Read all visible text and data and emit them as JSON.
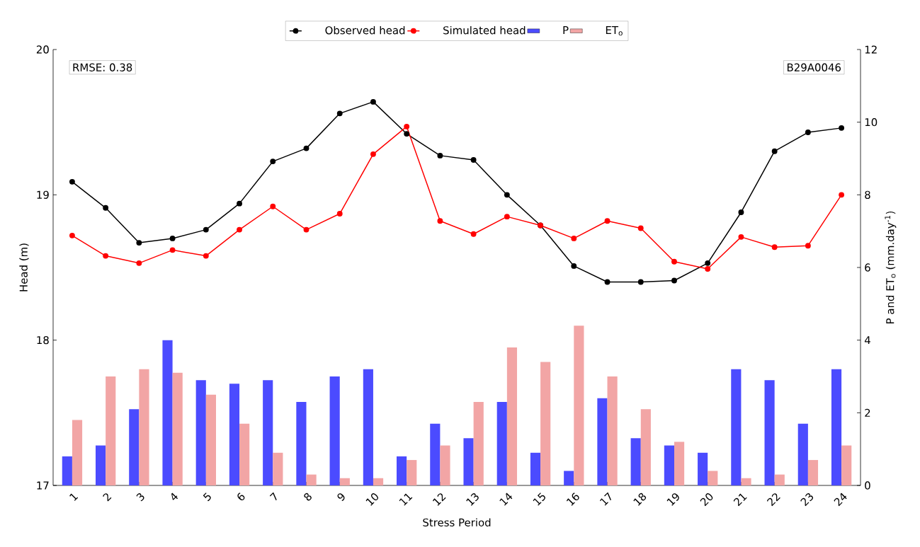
{
  "chart_data": {
    "type": "line",
    "xlabel": "Stress Period",
    "ylabel": "Head (m)",
    "y2label": "P and ET$_{o}$ (mm.day$^{-1}$)",
    "categories": [
      "1",
      "2",
      "3",
      "4",
      "5",
      "6",
      "7",
      "8",
      "9",
      "10",
      "11",
      "12",
      "13",
      "14",
      "15",
      "16",
      "17",
      "18",
      "19",
      "20",
      "21",
      "22",
      "23",
      "24"
    ],
    "series": [
      {
        "name": "Observed head",
        "color": "#000000",
        "values": [
          19.09,
          18.91,
          18.67,
          18.7,
          18.76,
          18.94,
          19.23,
          19.32,
          19.56,
          19.64,
          19.42,
          19.27,
          19.24,
          19.0,
          18.79,
          18.51,
          18.4,
          18.4,
          18.41,
          18.53,
          18.88,
          19.3,
          19.43,
          19.46
        ]
      },
      {
        "name": "Simulated head",
        "color": "#ff0000",
        "values": [
          18.72,
          18.58,
          18.53,
          18.62,
          18.58,
          18.76,
          18.92,
          18.76,
          18.87,
          19.28,
          19.47,
          18.82,
          18.73,
          18.85,
          18.79,
          18.7,
          18.82,
          18.77,
          18.54,
          18.49,
          18.71,
          18.64,
          18.65,
          19.0
        ]
      },
      {
        "name": "P",
        "type": "bar",
        "axis": "y2",
        "color": "#4b4bff",
        "values": [
          0.8,
          1.1,
          2.1,
          4.0,
          2.9,
          2.8,
          2.9,
          2.3,
          3.0,
          3.2,
          0.8,
          1.7,
          1.3,
          2.3,
          0.9,
          0.4,
          2.4,
          1.3,
          1.1,
          0.9,
          3.2,
          2.9,
          1.7,
          3.2
        ]
      },
      {
        "name": "ET$_{o}$",
        "type": "bar",
        "axis": "y2",
        "color": "#f2a5a5",
        "values": [
          1.8,
          3.0,
          3.2,
          3.1,
          2.5,
          1.7,
          0.9,
          0.3,
          0.2,
          0.2,
          0.7,
          1.1,
          2.3,
          3.8,
          3.4,
          4.4,
          3.0,
          2.1,
          1.2,
          0.4,
          0.2,
          0.3,
          0.7,
          1.1
        ]
      }
    ],
    "ylim": [
      17,
      20
    ],
    "yticks": [
      17,
      18,
      19,
      20
    ],
    "y2lim": [
      0,
      12
    ],
    "y2ticks": [
      0,
      2,
      4,
      6,
      8,
      10,
      12
    ],
    "marker": "circle",
    "legend": "top",
    "annotations": [
      "RMSE: 0.38",
      "B29A0046"
    ]
  }
}
